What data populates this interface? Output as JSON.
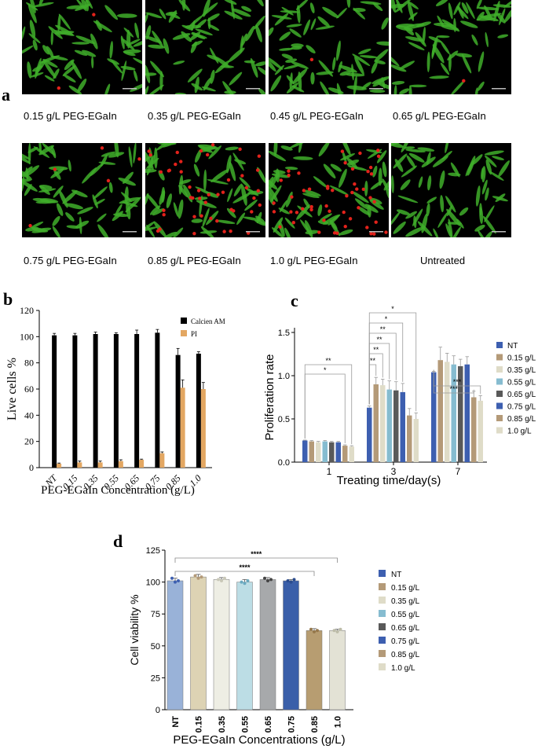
{
  "panel_a": {
    "letter": "a",
    "tiles": [
      {
        "label": "0.15 g/L PEG-EGaIn",
        "dead_cells": 2
      },
      {
        "label": "0.35 g/L PEG-EGaIn",
        "dead_cells": 0
      },
      {
        "label": "0.45 g/L PEG-EGaIn",
        "dead_cells": 1
      },
      {
        "label": "0.65 g/L PEG-EGaIn",
        "dead_cells": 1
      },
      {
        "label": "0.75 g/L PEG-EGaIn",
        "dead_cells": 5
      },
      {
        "label": "0.85 g/L PEG-EGaIn",
        "dead_cells": 45
      },
      {
        "label": "1.0 g/L PEG-EGaIn",
        "dead_cells": 50
      },
      {
        "label": "Untreated",
        "dead_cells": 0
      }
    ],
    "colors": {
      "live": "#3fae2a",
      "dead": "#e3221b"
    }
  },
  "chart_data": [
    {
      "panel": "b",
      "type": "bar",
      "title": "",
      "xlabel": "PEG-EGaIn Concentration (g/L)",
      "ylabel": "Live cells %",
      "ylim": [
        0,
        120
      ],
      "yticks": [
        0,
        20,
        40,
        60,
        80,
        100,
        120
      ],
      "categories": [
        "NT",
        "0.15",
        "0.35",
        "0.55",
        "0.65",
        "0.75",
        "0.85",
        "1.0"
      ],
      "series": [
        {
          "name": "Calcien AM",
          "color": "#000000",
          "values": [
            101,
            101,
            102,
            102,
            102,
            103,
            86,
            87
          ],
          "errors": [
            1.5,
            1.5,
            1.5,
            1,
            3,
            2.5,
            5,
            1.5
          ]
        },
        {
          "name": "PI",
          "color": "#e3a762",
          "values": [
            3,
            4,
            4,
            5,
            6,
            11,
            61,
            60
          ],
          "errors": [
            0.5,
            1,
            1,
            1,
            0.5,
            1,
            6,
            5
          ]
        }
      ],
      "legend": "top-right",
      "grid": false
    },
    {
      "panel": "c",
      "type": "bar",
      "title": "",
      "xlabel": "Treating time/day(s)",
      "ylabel": "Proliferation rate",
      "ylim": [
        0,
        1.5
      ],
      "yticks": [
        0.0,
        0.5,
        1.0,
        1.5
      ],
      "categories": [
        "1",
        "3",
        "7"
      ],
      "series": [
        {
          "name": "NT",
          "color": "#3d5fb0",
          "values": [
            0.25,
            0.63,
            1.04
          ],
          "errors": [
            0.005,
            0.02,
            0.01
          ]
        },
        {
          "name": "0.15 g/L",
          "color": "#b49a78",
          "values": [
            0.24,
            0.9,
            1.18
          ],
          "errors": [
            0.01,
            0.08,
            0.15
          ]
        },
        {
          "name": "0.35 g/L",
          "color": "#dfdcc8",
          "values": [
            0.23,
            0.89,
            1.16
          ],
          "errors": [
            0.01,
            0.07,
            0.1
          ]
        },
        {
          "name": "0.55 g/L",
          "color": "#86bcd0",
          "values": [
            0.24,
            0.84,
            1.13
          ],
          "errors": [
            0.01,
            0.1,
            0.1
          ]
        },
        {
          "name": "0.65 g/L",
          "color": "#595959",
          "values": [
            0.23,
            0.83,
            1.11
          ],
          "errors": [
            0.01,
            0.1,
            0.08
          ]
        },
        {
          "name": "0.75 g/L",
          "color": "#3d5fb0",
          "values": [
            0.23,
            0.81,
            1.13
          ],
          "errors": [
            0.01,
            0.1,
            0.09
          ]
        },
        {
          "name": "0.85 g/L",
          "color": "#b49a78",
          "values": [
            0.19,
            0.54,
            0.75
          ],
          "errors": [
            0.01,
            0.08,
            0.07
          ]
        },
        {
          "name": "1.0 g/L",
          "color": "#dfdcc8",
          "values": [
            0.18,
            0.5,
            0.71
          ],
          "errors": [
            0.01,
            0.07,
            0.06
          ]
        }
      ],
      "significance": [
        {
          "day": "1",
          "from": 0,
          "to": 7,
          "label": "**"
        },
        {
          "day": "1",
          "from": 0,
          "to": 6,
          "label": "*"
        },
        {
          "day": "3",
          "from": 0,
          "to": 7,
          "label": "*"
        },
        {
          "day": "3",
          "from": 0,
          "to": 5,
          "label": "*"
        },
        {
          "day": "3",
          "from": 0,
          "to": 4,
          "label": "**"
        },
        {
          "day": "3",
          "from": 0,
          "to": 3,
          "label": "**"
        },
        {
          "day": "3",
          "from": 0,
          "to": 2,
          "label": "**"
        },
        {
          "day": "3",
          "from": 0,
          "to": 1,
          "label": "**"
        },
        {
          "day": "7",
          "from": 0,
          "to": 7,
          "label": "***"
        },
        {
          "day": "7",
          "from": 0,
          "to": 6,
          "label": "***"
        }
      ],
      "legend": "right",
      "grid": false
    },
    {
      "panel": "d",
      "type": "bar",
      "title": "",
      "xlabel": "PEG-EGaIn Concentrations (g/L)",
      "ylabel": "Cell viability %",
      "ylim": [
        0,
        125
      ],
      "yticks": [
        0,
        25,
        50,
        75,
        100,
        125
      ],
      "categories": [
        "NT",
        "0.15",
        "0.35",
        "0.55",
        "0.65",
        "0.75",
        "0.85",
        "1.0"
      ],
      "values": [
        101,
        104,
        102,
        100,
        102,
        101,
        62,
        62
      ],
      "errors": [
        2,
        2,
        1.5,
        2,
        1.5,
        1,
        1.5,
        1
      ],
      "points": [
        [
          103,
          100,
          101
        ],
        [
          105,
          103,
          104
        ],
        [
          102,
          101,
          103
        ],
        [
          100,
          99,
          101
        ],
        [
          103,
          101,
          102
        ],
        [
          101,
          100,
          102
        ],
        [
          63,
          61,
          62
        ],
        [
          62,
          61,
          63
        ]
      ],
      "colors": [
        "#99b2d8",
        "#ddd3b4",
        "#eeeee4",
        "#bcdde5",
        "#a7a9ab",
        "#3a5fa9",
        "#b79d71",
        "#e3e2d5"
      ],
      "point_colors": [
        "#3d5fb0",
        "#b49a78",
        "#c9c8b8",
        "#6aa9c0",
        "#444444",
        "#2a4b8e",
        "#96784c",
        "#bdbca8"
      ],
      "legend_entries": [
        "NT",
        "0.15 g/L",
        "0.35 g/L",
        "0.55 g/L",
        "0.65 g/L",
        "0.75 g/L",
        "0.85 g/L",
        "1.0 g/L"
      ],
      "legend_colors": [
        "#3d5fb0",
        "#b49a78",
        "#dfdcc8",
        "#86bcd0",
        "#595959",
        "#3d5fb0",
        "#b49a78",
        "#dfdcc8"
      ],
      "significance": [
        {
          "from": 0,
          "to": 7,
          "label": "****"
        },
        {
          "from": 0,
          "to": 6,
          "label": "****"
        }
      ],
      "legend": "right",
      "grid": false
    }
  ],
  "letters": {
    "b": "b",
    "c": "c",
    "d": "d"
  }
}
